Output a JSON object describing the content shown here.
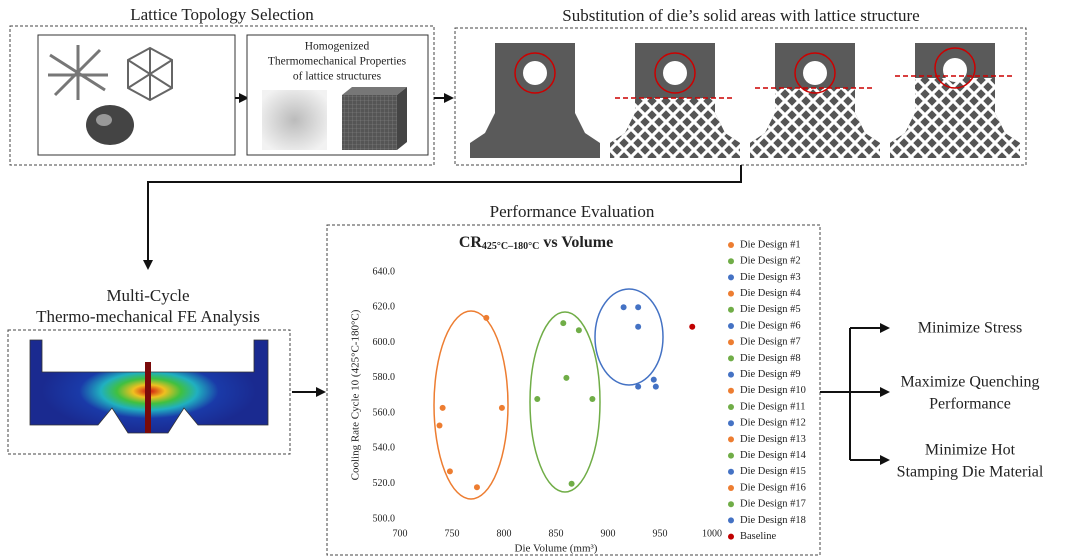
{
  "topology": {
    "title": "Lattice Topology Selection",
    "box_lines": [
      "Homogenized",
      "Thermomechanical Properties",
      "of lattice structures"
    ]
  },
  "substitution": {
    "title": "Substitution of die’s solid areas with lattice structure"
  },
  "analysis": {
    "title_lines": [
      "Multi-Cycle",
      "Thermo-mechanical FE Analysis"
    ]
  },
  "evaluation": {
    "title": "Performance Evaluation"
  },
  "objectives": [
    [
      "Minimize Stress"
    ],
    [
      "Maximize Quenching",
      "Performance"
    ],
    [
      "Minimize Hot",
      "Stamping Die Material"
    ]
  ],
  "chart_data": {
    "type": "scatter",
    "title": "CR",
    "title_subscript": "425°C–180°C",
    "title_suffix": "vs Volume",
    "x_label": "Die Volume (mm³)",
    "y_label": "Cooling Rate Cycle 10 (425°C-180°C)",
    "xlim": [
      700,
      1000
    ],
    "xticks": [
      700,
      750,
      800,
      850,
      900,
      950,
      1000
    ],
    "ylim": [
      500,
      640
    ],
    "yticks": [
      {
        "value": 500,
        "label": "500.0"
      },
      {
        "value": 520,
        "label": "520.0"
      },
      {
        "value": 540,
        "label": "540.0"
      },
      {
        "value": 560,
        "label": "560.0"
      },
      {
        "value": 580,
        "label": "580.0"
      },
      {
        "value": 600,
        "label": "600.0"
      },
      {
        "value": 620,
        "label": "620.0"
      },
      {
        "value": 640,
        "label": "640.0"
      }
    ],
    "series": [
      {
        "name": "Die Design #1",
        "color": "#ed7d31",
        "x": [
          741
        ],
        "values": [
          563
        ]
      },
      {
        "name": "Die Design #2",
        "color": "#70ad47",
        "x": [
          832
        ],
        "values": [
          568
        ]
      },
      {
        "name": "Die Design #3",
        "color": "#4472c4",
        "x": [
          915
        ],
        "values": [
          620
        ]
      },
      {
        "name": "Die Design #4",
        "color": "#ed7d31",
        "x": [
          738
        ],
        "values": [
          553
        ]
      },
      {
        "name": "Die Design #5",
        "color": "#70ad47",
        "x": [
          857
        ],
        "values": [
          611
        ]
      },
      {
        "name": "Die Design #6",
        "color": "#4472c4",
        "x": [
          929
        ],
        "values": [
          620
        ]
      },
      {
        "name": "Die Design #7",
        "color": "#ed7d31",
        "x": [
          748
        ],
        "values": [
          527
        ]
      },
      {
        "name": "Die Design #8",
        "color": "#70ad47",
        "x": [
          860
        ],
        "values": [
          580
        ]
      },
      {
        "name": "Die Design #9",
        "color": "#4472c4",
        "x": [
          929
        ],
        "values": [
          609
        ]
      },
      {
        "name": "Die Design #10",
        "color": "#ed7d31",
        "x": [
          774
        ],
        "values": [
          518
        ]
      },
      {
        "name": "Die Design #11",
        "color": "#70ad47",
        "x": [
          872
        ],
        "values": [
          607
        ]
      },
      {
        "name": "Die Design #12",
        "color": "#4472c4",
        "x": [
          929
        ],
        "values": [
          575
        ]
      },
      {
        "name": "Die Design #13",
        "color": "#ed7d31",
        "x": [
          783
        ],
        "values": [
          614
        ]
      },
      {
        "name": "Die Design #14",
        "color": "#70ad47",
        "x": [
          865
        ],
        "values": [
          520
        ]
      },
      {
        "name": "Die Design #15",
        "color": "#4472c4",
        "x": [
          944
        ],
        "values": [
          579
        ]
      },
      {
        "name": "Die Design #16",
        "color": "#ed7d31",
        "x": [
          798
        ],
        "values": [
          563
        ]
      },
      {
        "name": "Die Design #17",
        "color": "#70ad47",
        "x": [
          885
        ],
        "values": [
          568
        ]
      },
      {
        "name": "Die Design #18",
        "color": "#4472c4",
        "x": [
          946
        ],
        "values": [
          575
        ]
      },
      {
        "name": "Baseline",
        "color": "#c00000",
        "x": [
          981
        ],
        "values": [
          609
        ]
      }
    ]
  }
}
